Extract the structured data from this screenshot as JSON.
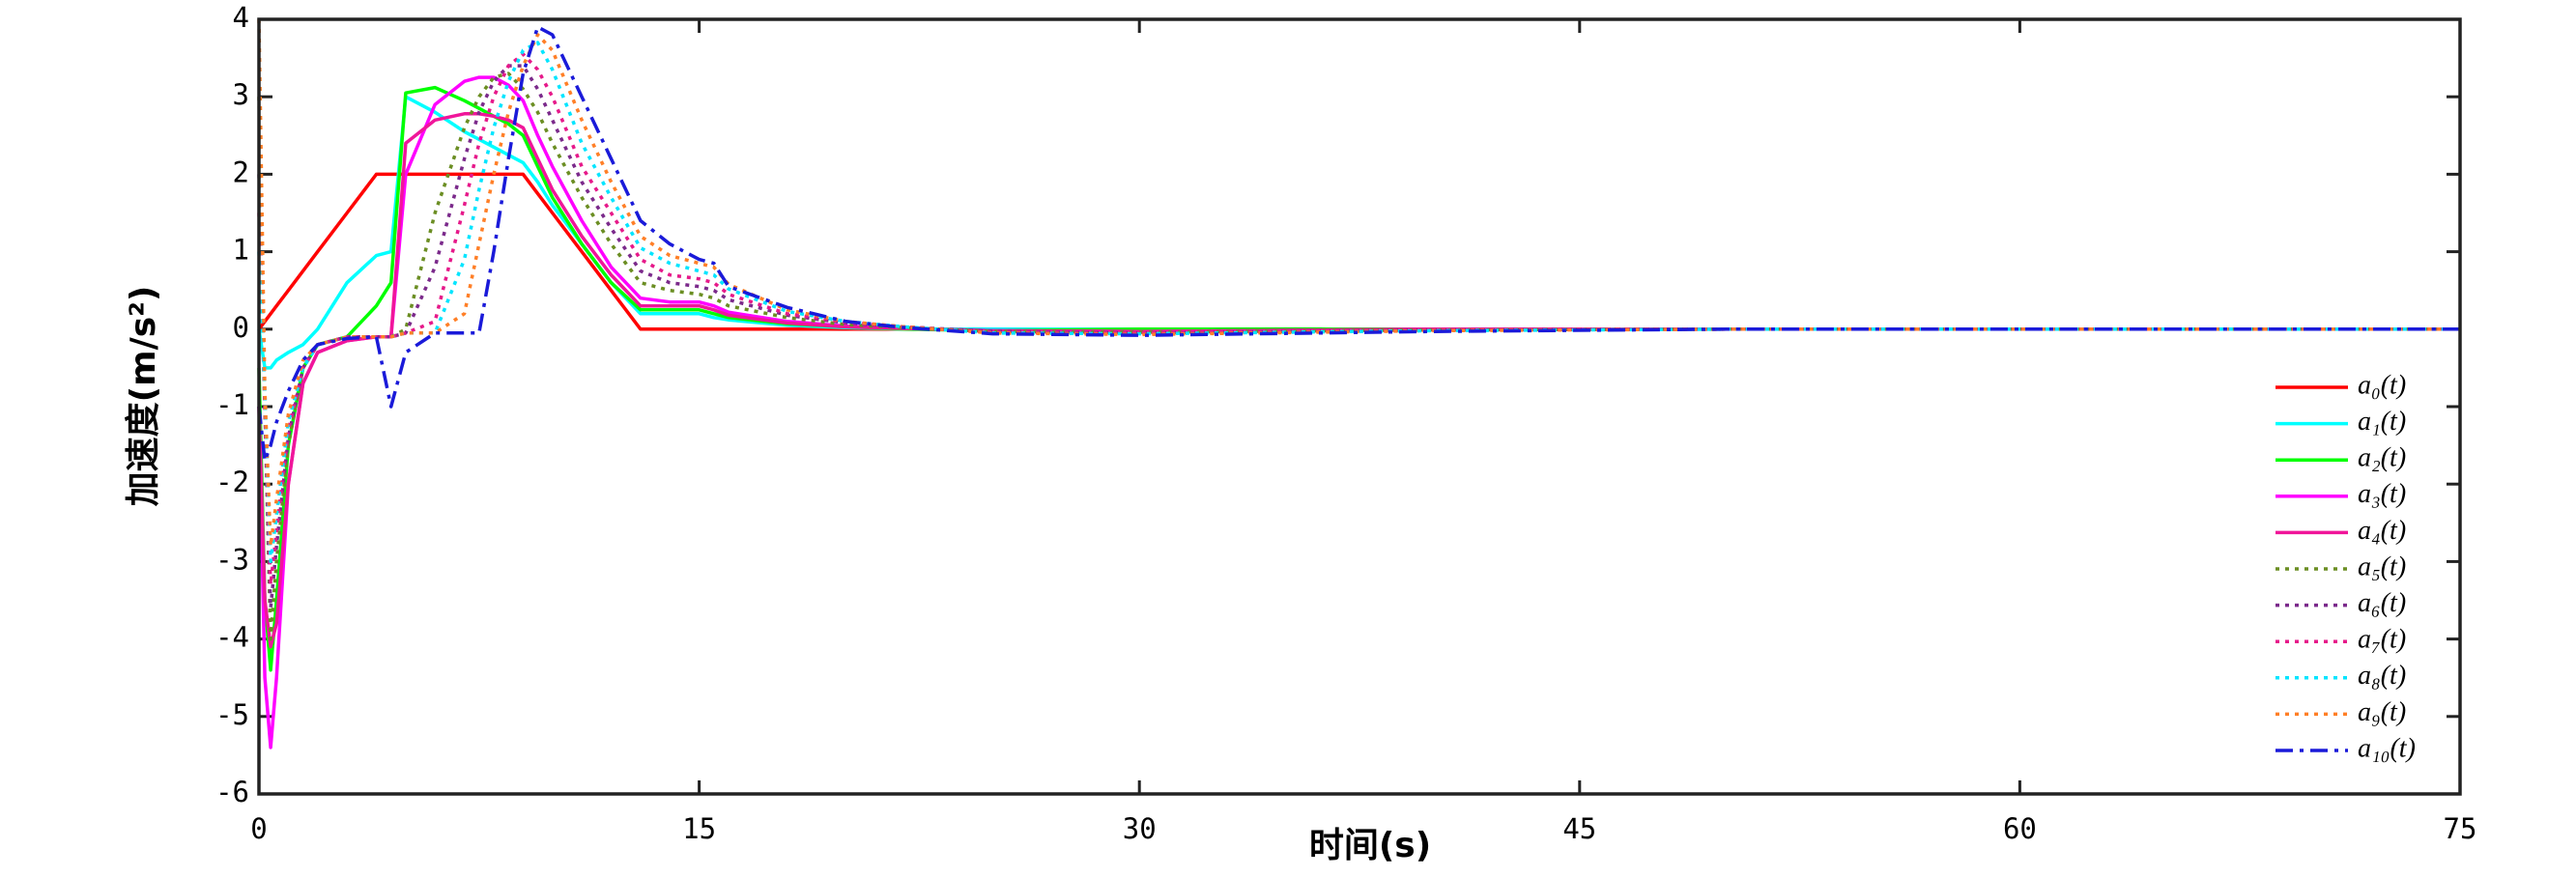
{
  "chart_data": {
    "type": "line",
    "xlabel": "时间(s)",
    "ylabel": "加速度(m/s²)",
    "xlim": [
      0,
      75
    ],
    "xticks": [
      0,
      15,
      30,
      45,
      60,
      75
    ],
    "ylim": [
      -6,
      4
    ],
    "yticks": [
      -6,
      -5,
      -4,
      -3,
      -2,
      -1,
      0,
      1,
      2,
      3,
      4
    ],
    "grid": false,
    "legend": "lower right",
    "x": [
      0,
      0.2,
      0.4,
      0.6,
      1,
      1.5,
      2,
      3,
      4,
      4.5,
      5,
      6,
      7,
      7.5,
      8,
      8.5,
      9,
      9.5,
      10,
      11,
      12,
      13,
      14,
      15,
      15.5,
      16,
      18,
      20,
      22,
      25,
      30,
      40,
      50,
      75
    ],
    "series": [
      {
        "name": "a₀(t)",
        "color": "#ff0000",
        "style": "solid",
        "values": [
          0,
          0.1,
          0.2,
          0.3,
          0.5,
          0.75,
          1,
          1.5,
          2,
          2,
          2,
          2,
          2,
          2,
          2,
          2,
          2,
          1.75,
          1.5,
          1,
          0.5,
          0,
          0,
          0,
          0,
          0,
          0,
          0,
          0,
          0,
          0,
          0,
          0,
          0
        ]
      },
      {
        "name": "a₁(t)",
        "color": "#00ffff",
        "style": "solid",
        "values": [
          0,
          -0.5,
          -0.5,
          -0.4,
          -0.3,
          -0.2,
          0,
          0.6,
          0.95,
          1,
          3.0,
          2.8,
          2.55,
          2.45,
          2.35,
          2.25,
          2.15,
          1.9,
          1.6,
          1.1,
          0.6,
          0.2,
          0.2,
          0.2,
          0.15,
          0.12,
          0.05,
          0.02,
          0,
          0,
          0,
          0,
          0,
          0
        ]
      },
      {
        "name": "a₂(t)",
        "color": "#00ff00",
        "style": "solid",
        "values": [
          -0.5,
          -3.5,
          -4.4,
          -3.5,
          -1.5,
          -0.5,
          -0.2,
          -0.1,
          0.3,
          0.6,
          3.05,
          3.12,
          2.95,
          2.85,
          2.75,
          2.65,
          2.5,
          2.1,
          1.7,
          1.1,
          0.6,
          0.25,
          0.25,
          0.25,
          0.2,
          0.15,
          0.07,
          0.03,
          0,
          -0.02,
          0,
          0,
          0,
          0
        ]
      },
      {
        "name": "a₃(t)",
        "color": "#ff00ff",
        "style": "solid",
        "values": [
          -1,
          -4.5,
          -5.4,
          -4.5,
          -2,
          -0.7,
          -0.3,
          -0.15,
          -0.1,
          -0.1,
          2.0,
          2.9,
          3.2,
          3.25,
          3.25,
          3.15,
          2.95,
          2.5,
          2.1,
          1.4,
          0.8,
          0.4,
          0.35,
          0.35,
          0.3,
          0.22,
          0.1,
          0.04,
          0.01,
          -0.02,
          -0.03,
          0,
          0,
          0
        ]
      },
      {
        "name": "a₄(t)",
        "color": "#f0169a",
        "style": "solid",
        "values": [
          -1,
          -3.5,
          -4.1,
          -3.8,
          -2,
          -0.7,
          -0.3,
          -0.15,
          -0.1,
          -0.1,
          2.4,
          2.7,
          2.78,
          2.78,
          2.75,
          2.7,
          2.6,
          2.2,
          1.8,
          1.2,
          0.7,
          0.3,
          0.3,
          0.3,
          0.25,
          0.18,
          0.08,
          0.03,
          0.01,
          -0.02,
          -0.03,
          0,
          0,
          0
        ]
      },
      {
        "name": "a₅(t)",
        "color": "#6b8e23",
        "style": "dotted",
        "values": [
          3,
          -1,
          -4,
          -3,
          -1.5,
          -0.5,
          -0.2,
          -0.1,
          -0.1,
          -0.1,
          0,
          1.5,
          2.6,
          3.0,
          3.25,
          3.3,
          3.1,
          2.8,
          2.4,
          1.7,
          1.1,
          0.6,
          0.5,
          0.45,
          0.4,
          0.3,
          0.15,
          0.06,
          0.02,
          -0.03,
          -0.04,
          -0.01,
          0,
          0
        ]
      },
      {
        "name": "a₆(t)",
        "color": "#7b2a8b",
        "style": "dotted",
        "values": [
          2,
          -1,
          -3.6,
          -2.8,
          -1.4,
          -0.5,
          -0.2,
          -0.1,
          -0.1,
          -0.1,
          -0.05,
          0.8,
          2.2,
          2.8,
          3.2,
          3.4,
          3.4,
          3.1,
          2.7,
          1.9,
          1.3,
          0.75,
          0.6,
          0.55,
          0.5,
          0.38,
          0.18,
          0.08,
          0.03,
          -0.03,
          -0.05,
          -0.01,
          0,
          0
        ]
      },
      {
        "name": "a₇(t)",
        "color": "#e6198a",
        "style": "dotted",
        "values": [
          1.5,
          -1,
          -3.3,
          -2.6,
          -1.3,
          -0.5,
          -0.2,
          -0.1,
          -0.1,
          -0.1,
          -0.05,
          0.1,
          1.6,
          2.4,
          3.0,
          3.4,
          3.55,
          3.35,
          3.0,
          2.1,
          1.5,
          0.9,
          0.7,
          0.65,
          0.6,
          0.45,
          0.2,
          0.09,
          0.03,
          -0.04,
          -0.05,
          -0.01,
          0,
          0
        ]
      },
      {
        "name": "a₈(t)",
        "color": "#00e5ff",
        "style": "dotted",
        "values": [
          1,
          -0.8,
          -3,
          -2.4,
          -1.2,
          -0.5,
          -0.2,
          -0.1,
          -0.1,
          -0.1,
          -0.05,
          -0.05,
          0.9,
          1.8,
          2.6,
          3.2,
          3.6,
          3.7,
          3.35,
          2.4,
          1.7,
          1.05,
          0.85,
          0.75,
          0.7,
          0.52,
          0.23,
          0.1,
          0.03,
          -0.05,
          -0.06,
          -0.02,
          0,
          0
        ]
      },
      {
        "name": "a₉(t)",
        "color": "#ff7f27",
        "style": "dotted",
        "values": [
          4,
          -0.8,
          -2.8,
          -2.2,
          -1.1,
          -0.4,
          -0.2,
          -0.1,
          -0.1,
          -0.1,
          -0.05,
          -0.05,
          0.2,
          1.1,
          2.0,
          2.8,
          3.4,
          3.8,
          3.6,
          2.7,
          1.9,
          1.2,
          0.95,
          0.85,
          0.8,
          0.58,
          0.25,
          0.1,
          0.03,
          -0.05,
          -0.07,
          -0.02,
          0,
          0
        ]
      },
      {
        "name": "a₁₀(t)",
        "color": "#1a1ad9",
        "style": "dashdot",
        "values": [
          -1,
          -1.7,
          -1.5,
          -1.2,
          -0.8,
          -0.4,
          -0.2,
          -0.12,
          -0.1,
          -1.0,
          -0.3,
          -0.05,
          -0.05,
          -0.05,
          1.0,
          2.2,
          3.3,
          3.9,
          3.8,
          3.0,
          2.2,
          1.4,
          1.1,
          0.9,
          0.85,
          0.55,
          0.28,
          0.1,
          0.02,
          -0.06,
          -0.08,
          -0.03,
          0,
          0
        ]
      }
    ]
  }
}
